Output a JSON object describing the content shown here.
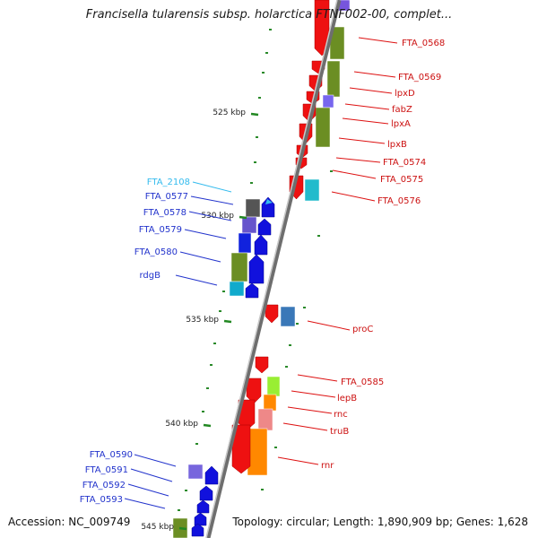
{
  "title": "Francisella tularensis subsp. holarctica FTNF002-00, complet...",
  "footer": {
    "accession": "Accession: NC_009749",
    "topology": "Topology: circular; Length: 1,890,909 bp; Genes: 1,628"
  },
  "ticks": [
    "525 kbp",
    "530 kbp",
    "535 kbp",
    "540 kbp",
    "545 kbp"
  ],
  "genes_right": [
    "FTA_0568",
    "FTA_0569",
    "lpxD",
    "fabZ",
    "lpxA",
    "lpxB",
    "FTA_0574",
    "FTA_0575",
    "FTA_0576",
    "proC",
    "FTA_0585",
    "lepB",
    "rnc",
    "truB",
    "rnr"
  ],
  "genes_left": [
    "FTA_2108",
    "FTA_0577",
    "FTA_0578",
    "FTA_0579",
    "FTA_0580",
    "rdgB",
    "FTA_0590",
    "FTA_0591",
    "FTA_0592",
    "FTA_0593"
  ],
  "colors": {
    "forward": "#ee1111",
    "reverse": "#1111dd",
    "rna": "#33bbee",
    "backbone": "#888888",
    "tick": "#228822"
  }
}
